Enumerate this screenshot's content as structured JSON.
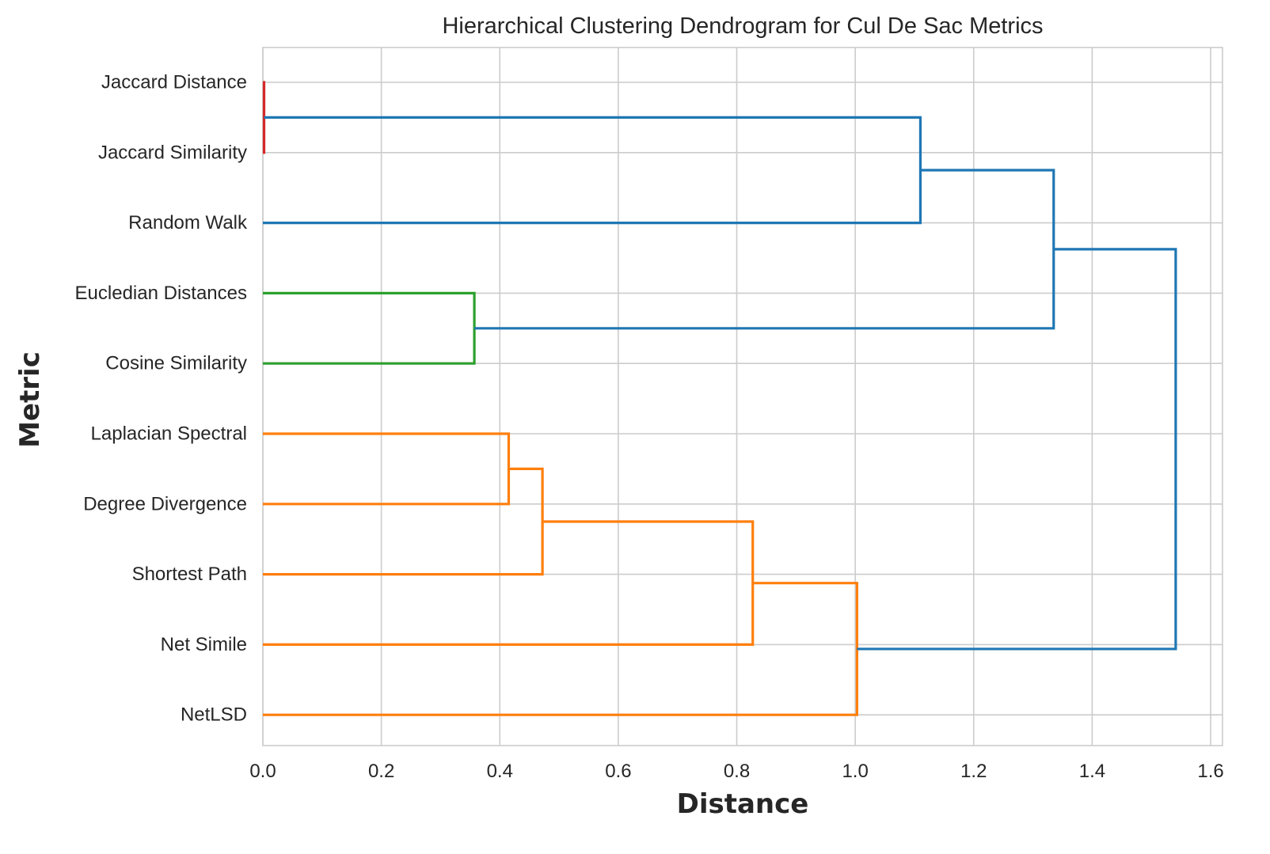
{
  "chart_data": {
    "type": "dendrogram",
    "title": "Hierarchical Clustering Dendrogram for Cul De Sac Metrics",
    "xlabel": "Distance",
    "ylabel": "Metric",
    "xlim": [
      0.0,
      1.62
    ],
    "xticks": [
      0.0,
      0.2,
      0.4,
      0.6,
      0.8,
      1.0,
      1.2,
      1.4,
      1.6
    ],
    "xtick_labels": [
      "0.0",
      "0.2",
      "0.4",
      "0.6",
      "0.8",
      "1.0",
      "1.2",
      "1.4",
      "1.6"
    ],
    "grid": true,
    "leaves": [
      "Jaccard Distance",
      "Jaccard Similarity",
      "Random Walk",
      "Eucledian Distances",
      "Cosine Similarity",
      "Laplacian Spectral",
      "Degree Divergence",
      "Shortest Path",
      "Net Simile",
      "NetLSD"
    ],
    "colors": {
      "blue": "#1f77b4",
      "orange": "#ff7f0e",
      "green": "#2ca02c",
      "red": "#d62728"
    },
    "merges": [
      {
        "id": "m1",
        "left": "Jaccard Distance",
        "right": "Jaccard Similarity",
        "distance": 0.002,
        "color": "red"
      },
      {
        "id": "m2",
        "left": "m1",
        "right": "Random Walk",
        "distance": 1.11,
        "color": "blue"
      },
      {
        "id": "m3",
        "left": "Eucledian Distances",
        "right": "Cosine Similarity",
        "distance": 0.357,
        "color": "green"
      },
      {
        "id": "m4",
        "left": "m2",
        "right": "m3",
        "distance": 1.335,
        "color": "blue"
      },
      {
        "id": "m5",
        "left": "Laplacian Spectral",
        "right": "Degree Divergence",
        "distance": 0.415,
        "color": "orange"
      },
      {
        "id": "m6",
        "left": "m5",
        "right": "Shortest Path",
        "distance": 0.472,
        "color": "orange"
      },
      {
        "id": "m7",
        "left": "m6",
        "right": "Net Simile",
        "distance": 0.827,
        "color": "orange"
      },
      {
        "id": "m8",
        "left": "m7",
        "right": "NetLSD",
        "distance": 1.003,
        "color": "orange"
      },
      {
        "id": "m9",
        "left": "m4",
        "right": "m8",
        "distance": 1.541,
        "color": "blue"
      }
    ]
  }
}
